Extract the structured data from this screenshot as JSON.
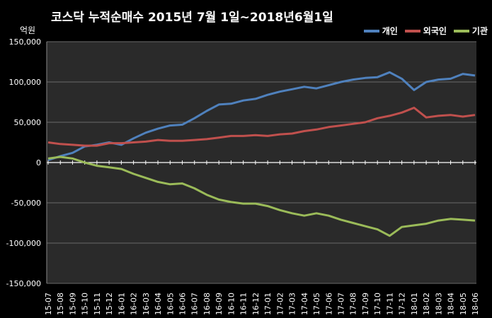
{
  "chart_data": {
    "type": "line",
    "title": "코스닥 누적순매수 2015년 7월 1일~2018년6월1일",
    "ylabel": "억원",
    "ylim": [
      -150000,
      150000
    ],
    "yticks": [
      "150,000",
      "100,000",
      "50,000",
      "0",
      "-50,000",
      "-100,000",
      "-150,000"
    ],
    "ytick_values": [
      150000,
      100000,
      50000,
      0,
      -50000,
      -100000,
      -150000
    ],
    "categories": [
      "15-07",
      "15-08",
      "15-09",
      "15-10",
      "15-11",
      "15-12",
      "16-01",
      "16-02",
      "16-03",
      "16-04",
      "16-05",
      "16-06",
      "16-07",
      "16-08",
      "16-09",
      "16-10",
      "16-11",
      "16-12",
      "17-01",
      "17-02",
      "17-03",
      "17-04",
      "17-05",
      "17-06",
      "17-07",
      "17-08",
      "17-09",
      "17-10",
      "17-11",
      "17-12",
      "18-01",
      "18-02",
      "18-03",
      "18-04",
      "18-05",
      "18-06"
    ],
    "legend_position": "top-right",
    "series": [
      {
        "name": "개인",
        "color": "#4f81bd",
        "values": [
          3000,
          8000,
          12000,
          20000,
          22000,
          25000,
          22000,
          30000,
          37000,
          42000,
          46000,
          47000,
          55000,
          64000,
          72000,
          73000,
          77000,
          79000,
          84000,
          88000,
          91000,
          94000,
          92000,
          96000,
          100000,
          103000,
          105000,
          106000,
          112000,
          104000,
          90000,
          100000,
          103000,
          104000,
          110000,
          108000
        ]
      },
      {
        "name": "외국인",
        "color": "#c0504d",
        "values": [
          25000,
          23000,
          22000,
          21000,
          21000,
          24000,
          24000,
          25000,
          26000,
          28000,
          27000,
          27000,
          28000,
          29000,
          31000,
          33000,
          33000,
          34000,
          33000,
          35000,
          36000,
          39000,
          41000,
          44000,
          46000,
          48000,
          50000,
          55000,
          58000,
          62000,
          68000,
          56000,
          58000,
          59000,
          57000,
          59000
        ]
      },
      {
        "name": "기관",
        "color": "#9bbb59",
        "values": [
          5000,
          7000,
          5000,
          0,
          -4000,
          -6000,
          -8000,
          -14000,
          -19000,
          -24000,
          -27000,
          -26000,
          -32000,
          -40000,
          -46000,
          -49000,
          -51000,
          -51000,
          -54000,
          -59000,
          -63000,
          -66000,
          -63000,
          -66000,
          -71000,
          -75000,
          -79000,
          -83000,
          -91000,
          -80000,
          -78000,
          -76000,
          -72000,
          -70000,
          -71000,
          -72000
        ]
      }
    ]
  }
}
